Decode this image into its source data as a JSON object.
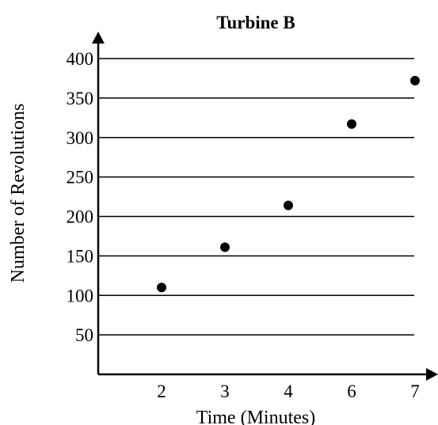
{
  "chart_data": {
    "type": "scatter",
    "title": "Turbine B",
    "xlabel": "Time (Minutes)",
    "ylabel": "Number of Revolutions",
    "x_tick_labels": [
      "2",
      "3",
      "4",
      "6",
      "7"
    ],
    "y_ticks": [
      50,
      100,
      150,
      200,
      250,
      300,
      350,
      400
    ],
    "ylim": [
      0,
      400
    ],
    "grid": "horizontal",
    "points": [
      {
        "x": "2",
        "y": 110
      },
      {
        "x": "3",
        "y": 161
      },
      {
        "x": "4",
        "y": 214
      },
      {
        "x": "6",
        "y": 317
      },
      {
        "x": "7",
        "y": 372
      }
    ],
    "point_color": "#000000"
  }
}
